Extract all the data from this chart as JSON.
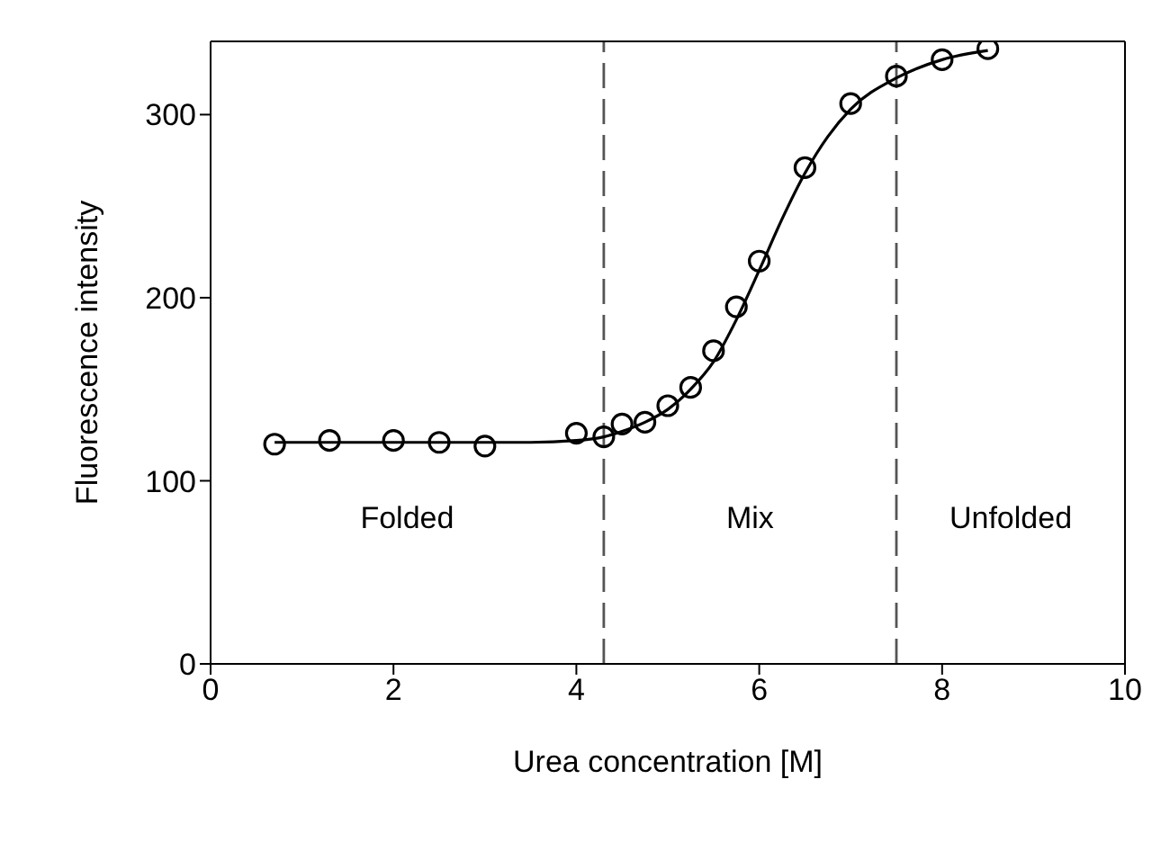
{
  "chart_data": {
    "type": "scatter",
    "xlabel": "Urea concentration [M]",
    "ylabel": "Fluorescence intensity",
    "xlim": [
      0,
      10
    ],
    "xticks": [
      0,
      2,
      4,
      6,
      8,
      10
    ],
    "ylim": [
      0,
      340
    ],
    "yticks": [
      0,
      100,
      200,
      300
    ],
    "series": [
      {
        "color": "#000000",
        "marker": "circle",
        "x": [
          0.7,
          1.3,
          2,
          2.5,
          3,
          4,
          4.3,
          4.5,
          4.75,
          5,
          5.25,
          5.5,
          5.75,
          6,
          6.5,
          7,
          7.5,
          8,
          8.5
        ],
        "values": [
          120,
          122,
          122,
          121,
          119,
          126,
          124,
          131,
          132,
          141,
          151,
          171,
          195,
          220,
          271,
          306,
          321,
          330,
          336
        ]
      },
      {
        "type": "line",
        "color": "#000000",
        "marker": "none",
        "line_style": "solid",
        "x": [
          0.7,
          2,
          3,
          3.5,
          4,
          4.3,
          4.5,
          4.75,
          5,
          5.25,
          5.5,
          5.75,
          6,
          6.25,
          6.5,
          6.75,
          7,
          7.5,
          8,
          8.5
        ],
        "values": [
          121,
          121,
          121,
          121,
          122,
          124,
          127,
          132,
          139,
          150,
          165,
          188,
          215,
          243,
          268,
          288,
          303,
          320,
          330,
          335
        ]
      }
    ],
    "ref_lines": [
      {
        "axis": "x",
        "value": 4.3,
        "color": "#555555",
        "line_style": "dashed"
      },
      {
        "axis": "x",
        "value": 7.5,
        "color": "#555555",
        "line_style": "dashed"
      }
    ],
    "annotations": [
      "Folded",
      "Mix",
      "Unfolded"
    ]
  }
}
